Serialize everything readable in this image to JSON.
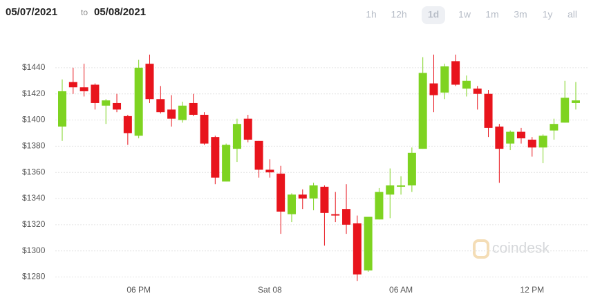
{
  "header": {
    "from": "05/07/2021",
    "to_word": "to",
    "to": "05/08/2021",
    "ranges": [
      "1h",
      "12h",
      "1d",
      "1w",
      "1m",
      "3m",
      "1y",
      "all"
    ],
    "active_range": "1d"
  },
  "watermark": "coindesk",
  "chart_data": {
    "type": "candlestick",
    "categories": [
      null,
      null,
      null,
      null,
      null,
      null,
      null,
      "06 PM",
      null,
      null,
      null,
      null,
      null,
      null,
      null,
      null,
      null,
      null,
      null,
      "Sat 08",
      null,
      null,
      null,
      null,
      null,
      null,
      null,
      null,
      null,
      null,
      null,
      "06 AM",
      null,
      null,
      null,
      null,
      null,
      null,
      null,
      null,
      null,
      null,
      null,
      "12 PM",
      null,
      null,
      null,
      null
    ],
    "open": [
      1395,
      1429,
      1425,
      1427,
      1411,
      1413,
      1403,
      1388,
      1443,
      1416,
      1408,
      1400,
      1413,
      1404,
      1387,
      1353,
      1378,
      1401,
      1384,
      1362,
      1359,
      1328,
      1343,
      1340,
      1349,
      1328,
      1332,
      1321,
      1285,
      1324,
      1343,
      1349,
      1350,
      1378,
      1428,
      1421,
      1445,
      1424,
      1424,
      1420,
      1395,
      1382,
      1391,
      1385,
      1379,
      1392,
      1398,
      1413
    ],
    "high": [
      1431,
      1440,
      1443,
      1428,
      1416,
      1420,
      1404,
      1446,
      1450,
      1426,
      1419,
      1414,
      1420,
      1406,
      1388,
      1382,
      1401,
      1404,
      1384,
      1370,
      1365,
      1344,
      1347,
      1352,
      1350,
      1345,
      1351,
      1327,
      1326,
      1348,
      1363,
      1357,
      1379,
      1448,
      1450,
      1443,
      1450,
      1434,
      1426,
      1423,
      1397,
      1392,
      1394,
      1387,
      1389,
      1401,
      1430,
      1429
    ],
    "low": [
      1384,
      1420,
      1418,
      1408,
      1397,
      1406,
      1381,
      1386,
      1413,
      1405,
      1395,
      1398,
      1403,
      1381,
      1351,
      1353,
      1368,
      1383,
      1356,
      1356,
      1313,
      1322,
      1332,
      1331,
      1304,
      1322,
      1313,
      1277,
      1284,
      1324,
      1325,
      1343,
      1345,
      1378,
      1406,
      1416,
      1426,
      1418,
      1408,
      1387,
      1352,
      1377,
      1382,
      1372,
      1367,
      1385,
      1398,
      1408
    ],
    "close": [
      1422,
      1425,
      1422,
      1413,
      1415,
      1408,
      1390,
      1440,
      1416,
      1406,
      1401,
      1411,
      1404,
      1382,
      1356,
      1381,
      1397,
      1385,
      1362,
      1360,
      1330,
      1343,
      1340,
      1350,
      1329,
      1327,
      1320,
      1282,
      1326,
      1345,
      1350,
      1350,
      1375,
      1436,
      1419,
      1441,
      1427,
      1430,
      1420,
      1394,
      1378,
      1391,
      1386,
      1379,
      1388,
      1397,
      1417,
      1415
    ],
    "up_color": "#7ed321",
    "down_color": "#e8141c",
    "ylim": [
      1275,
      1455
    ],
    "yticks": [
      {
        "value": 1280,
        "label": "$1280"
      },
      {
        "value": 1300,
        "label": "$1300"
      },
      {
        "value": 1320,
        "label": "$1320"
      },
      {
        "value": 1340,
        "label": "$1340"
      },
      {
        "value": 1360,
        "label": "$1360"
      },
      {
        "value": 1380,
        "label": "$1380"
      },
      {
        "value": 1400,
        "label": "$1400"
      },
      {
        "value": 1420,
        "label": "$1420"
      },
      {
        "value": 1440,
        "label": "$1440"
      }
    ],
    "grid": true
  }
}
